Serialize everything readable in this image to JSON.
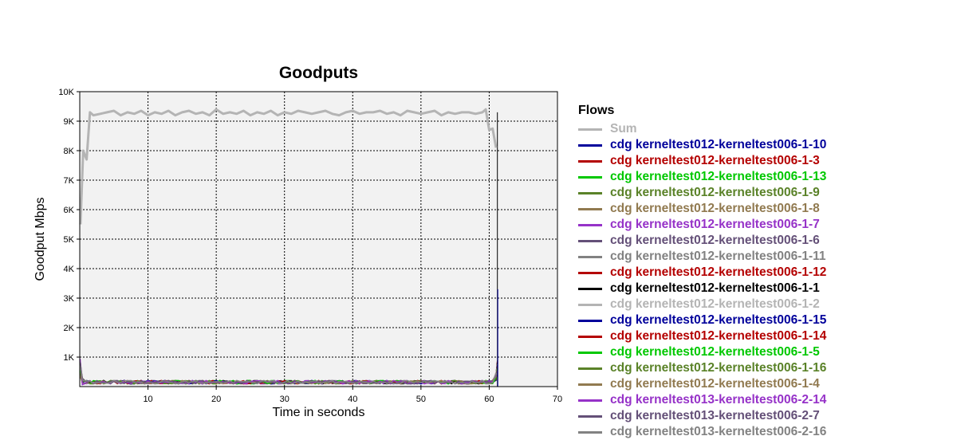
{
  "chart_data": {
    "type": "line",
    "title": "Goodputs",
    "xlabel": "Time in seconds",
    "ylabel": "Goodput Mbps",
    "xlim": [
      0,
      70
    ],
    "ylim": [
      0,
      10000
    ],
    "grid": true,
    "legend_placement": "right",
    "legend_title": "Flows",
    "x_ticks": [
      10,
      20,
      30,
      40,
      50,
      60,
      70
    ],
    "x_tick_labels": [
      "10",
      "20",
      "30",
      "40",
      "50",
      "60",
      "70"
    ],
    "y_ticks": [
      1000,
      2000,
      3000,
      4000,
      5000,
      6000,
      7000,
      8000,
      9000,
      10000
    ],
    "y_tick_labels": [
      "1K",
      "2K",
      "3K",
      "4K",
      "5K",
      "6K",
      "7K",
      "8K",
      "9K",
      "10K"
    ],
    "series": [
      {
        "name": "Sum",
        "color": "#b4b4b4",
        "x": [
          0.1,
          0.5,
          1.0,
          1.5,
          2,
          3,
          4,
          5,
          6,
          7,
          8,
          9,
          10,
          11,
          12,
          13,
          14,
          15,
          16,
          17,
          18,
          19,
          20,
          21,
          22,
          23,
          24,
          25,
          26,
          27,
          28,
          29,
          30,
          31,
          32,
          33,
          34,
          35,
          36,
          37,
          38,
          39,
          40,
          41,
          42,
          43,
          44,
          45,
          46,
          47,
          48,
          49,
          50,
          51,
          52,
          53,
          54,
          55,
          56,
          57,
          58,
          59,
          59.5,
          60,
          60.5,
          61
        ],
        "y": [
          5500,
          8000,
          7700,
          9300,
          9200,
          9250,
          9300,
          9350,
          9200,
          9300,
          9250,
          9350,
          9200,
          9300,
          9250,
          9350,
          9200,
          9300,
          9350,
          9250,
          9300,
          9200,
          9400,
          9250,
          9300,
          9250,
          9350,
          9200,
          9300,
          9250,
          9350,
          9200,
          9300,
          9250,
          9350,
          9300,
          9250,
          9300,
          9350,
          9250,
          9200,
          9300,
          9350,
          9250,
          9300,
          9300,
          9350,
          9250,
          9300,
          9200,
          9350,
          9300,
          9250,
          9300,
          9350,
          9200,
          9300,
          9250,
          9300,
          9300,
          9250,
          9300,
          9400,
          8700,
          8750,
          8100
        ]
      },
      {
        "name": "cdg kerneltest012-kerneltest006-1-10",
        "color": "#00009b"
      },
      {
        "name": "cdg kerneltest012-kerneltest006-1-3",
        "color": "#b40000"
      },
      {
        "name": "cdg kerneltest012-kerneltest006-1-13",
        "color": "#00c800"
      },
      {
        "name": "cdg kerneltest012-kerneltest006-1-9",
        "color": "#5a8228"
      },
      {
        "name": "cdg kerneltest012-kerneltest006-1-8",
        "color": "#917a50"
      },
      {
        "name": "cdg kerneltest012-kerneltest006-1-7",
        "color": "#9632c8"
      },
      {
        "name": "cdg kerneltest012-kerneltest006-1-6",
        "color": "#645078"
      },
      {
        "name": "cdg kerneltest012-kerneltest006-1-11",
        "color": "#828282"
      },
      {
        "name": "cdg kerneltest012-kerneltest006-1-12",
        "color": "#b40000"
      },
      {
        "name": "cdg kerneltest012-kerneltest006-1-1",
        "color": "#000000"
      },
      {
        "name": "cdg kerneltest012-kerneltest006-1-2",
        "color": "#b4b4b4"
      },
      {
        "name": "cdg kerneltest012-kerneltest006-1-15",
        "color": "#00009b"
      },
      {
        "name": "cdg kerneltest012-kerneltest006-1-14",
        "color": "#b40000"
      },
      {
        "name": "cdg kerneltest012-kerneltest006-1-5",
        "color": "#00c800"
      },
      {
        "name": "cdg kerneltest012-kerneltest006-1-16",
        "color": "#5a8228"
      },
      {
        "name": "cdg kerneltest012-kerneltest006-1-4",
        "color": "#917a50"
      },
      {
        "name": "cdg kerneltest013-kerneltest006-2-14",
        "color": "#9632c8"
      },
      {
        "name": "cdg kerneltest013-kerneltest006-2-7",
        "color": "#645078"
      },
      {
        "name": "cdg kerneltest013-kerneltest006-2-16",
        "color": "#828282"
      }
    ],
    "per_flow_typical_mbps": 150,
    "spike_x": 61.2,
    "spike_y": 9300
  }
}
